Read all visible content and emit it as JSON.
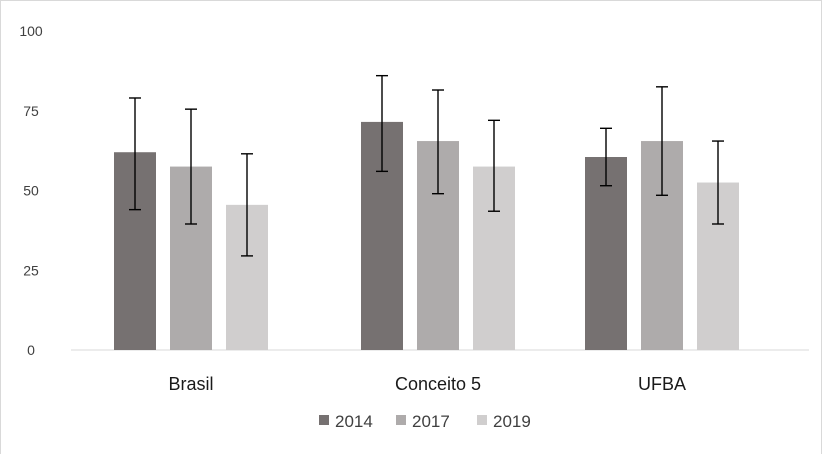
{
  "chart_data": {
    "type": "bar",
    "title": "",
    "xlabel": "",
    "ylabel": "",
    "categories": [
      "Brasil",
      "Conceito 5",
      "UFBA"
    ],
    "ylim": [
      0,
      100
    ],
    "yticks": [
      "0",
      "25",
      "50",
      "75",
      "100"
    ],
    "legend_position": "bottom",
    "grid": false,
    "series": [
      {
        "name": "2014",
        "color": "#767171",
        "values": [
          62,
          71.5,
          60.5
        ],
        "err_low": [
          44,
          56,
          51.5
        ],
        "err_high": [
          79,
          86,
          69.5
        ]
      },
      {
        "name": "2017",
        "color": "#aeabab",
        "values": [
          57.5,
          65.5,
          65.5
        ],
        "err_low": [
          39.5,
          49,
          48.5
        ],
        "err_high": [
          75.5,
          81.5,
          82.5
        ]
      },
      {
        "name": "2019",
        "color": "#d0cece",
        "values": [
          45.5,
          57.5,
          52.5
        ],
        "err_low": [
          29.5,
          43.5,
          39.5
        ],
        "err_high": [
          61.5,
          72,
          65.5
        ]
      }
    ]
  }
}
